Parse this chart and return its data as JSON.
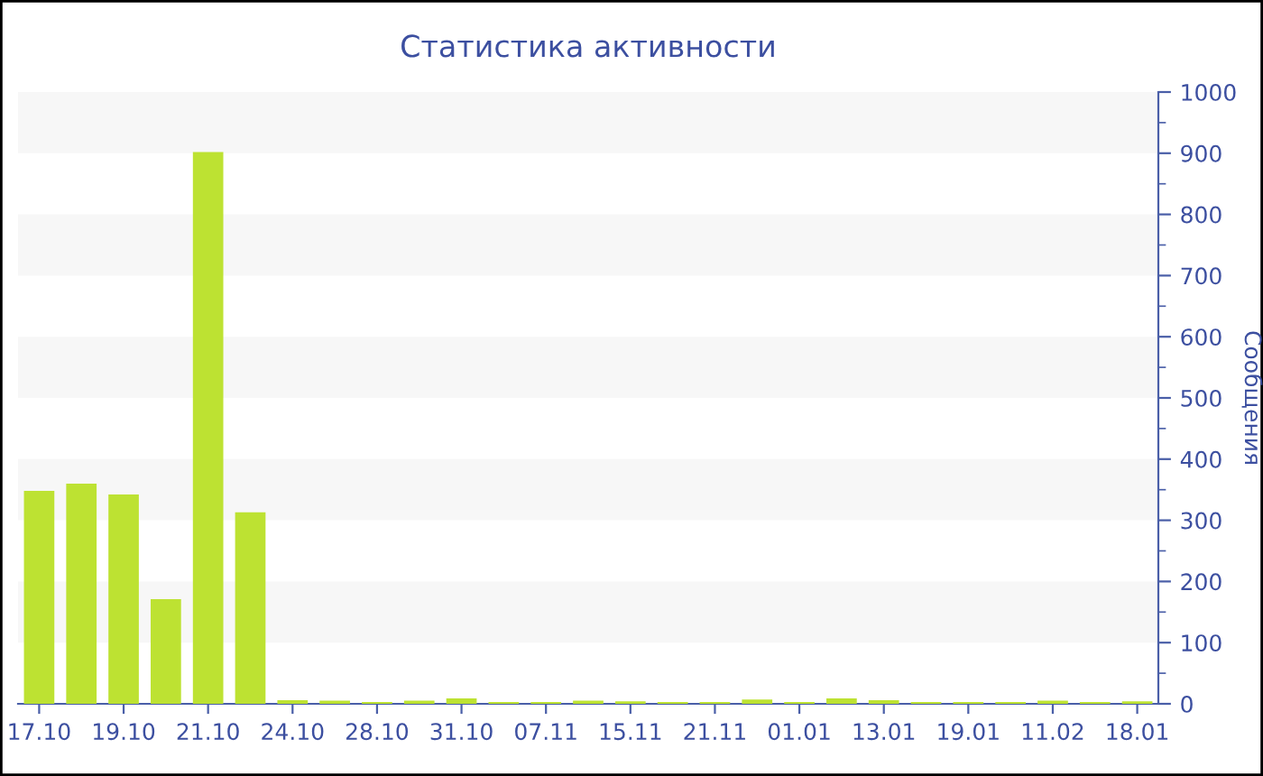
{
  "chart_data": {
    "type": "bar",
    "title": "Статистика активности",
    "ylabel": "Сообщения",
    "categories": [
      "17.10",
      null,
      "19.10",
      null,
      "21.10",
      null,
      "24.10",
      null,
      "28.10",
      null,
      "31.10",
      null,
      "07.11",
      null,
      "15.11",
      null,
      "21.11",
      null,
      "01.01",
      null,
      "13.01",
      null,
      "19.01",
      null,
      "11.02",
      null,
      "18.01"
    ],
    "values": [
      348,
      360,
      342,
      171,
      902,
      313,
      6,
      5,
      3,
      5,
      9,
      3,
      3,
      5,
      4,
      3,
      3,
      7,
      3,
      9,
      6,
      3,
      3,
      3,
      5,
      3,
      4
    ],
    "color": "#bde232",
    "ylim": [
      0,
      1000
    ],
    "yticks": [
      0,
      100,
      200,
      300,
      400,
      500,
      600,
      700,
      800,
      900,
      1000
    ],
    "bands": [
      {
        "axis": "y",
        "from": 100,
        "to": 200,
        "color": "#f7f7f7"
      },
      {
        "axis": "y",
        "from": 300,
        "to": 400,
        "color": "#f7f7f7"
      },
      {
        "axis": "y",
        "from": 500,
        "to": 600,
        "color": "#f7f7f7"
      },
      {
        "axis": "y",
        "from": 700,
        "to": 800,
        "color": "#f7f7f7"
      },
      {
        "axis": "y",
        "from": 900,
        "to": 1000,
        "color": "#f7f7f7"
      }
    ]
  }
}
